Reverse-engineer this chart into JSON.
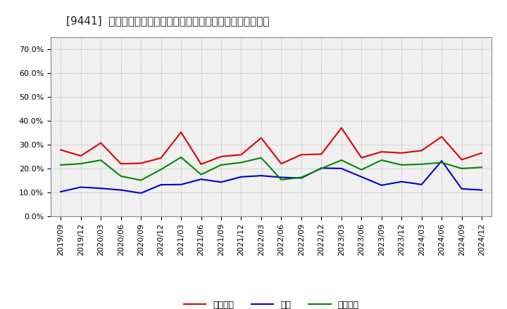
{
  "title": "[9441]  売上債権、在庫、買入債務の総資産に対する比率の推移",
  "x_labels": [
    "2019/09",
    "2019/12",
    "2020/03",
    "2020/06",
    "2020/09",
    "2020/12",
    "2021/03",
    "2021/06",
    "2021/09",
    "2021/12",
    "2022/03",
    "2022/06",
    "2022/09",
    "2022/12",
    "2023/03",
    "2023/06",
    "2023/09",
    "2023/12",
    "2024/03",
    "2024/06",
    "2024/09",
    "2024/12"
  ],
  "urikake": [
    0.278,
    0.253,
    0.307,
    0.22,
    0.222,
    0.244,
    0.352,
    0.218,
    0.25,
    0.258,
    0.328,
    0.22,
    0.258,
    0.26,
    0.37,
    0.245,
    0.27,
    0.265,
    0.275,
    0.333,
    0.237,
    0.265
  ],
  "zaiko": [
    0.103,
    0.122,
    0.117,
    0.11,
    0.097,
    0.132,
    0.133,
    0.155,
    0.143,
    0.165,
    0.17,
    0.163,
    0.16,
    0.202,
    0.2,
    0.165,
    0.13,
    0.145,
    0.133,
    0.232,
    0.115,
    0.11
  ],
  "kaiire": [
    0.215,
    0.22,
    0.235,
    0.168,
    0.151,
    0.196,
    0.247,
    0.175,
    0.215,
    0.225,
    0.245,
    0.153,
    0.163,
    0.2,
    0.235,
    0.195,
    0.235,
    0.215,
    0.218,
    0.225,
    0.2,
    0.205
  ],
  "urikake_color": "#dd0000",
  "zaiko_color": "#0000cc",
  "kaiire_color": "#008800",
  "ylim": [
    0.0,
    0.75
  ],
  "yticks": [
    0.0,
    0.1,
    0.2,
    0.3,
    0.4,
    0.5,
    0.6,
    0.7
  ],
  "legend_labels": [
    "売上債権",
    "在庫",
    "買入債務"
  ],
  "bg_color": "#ffffff",
  "plot_bg_color": "#f0f0f0",
  "grid_color": "#aaaaaa",
  "title_fontsize": 11,
  "tick_fontsize": 8,
  "legend_fontsize": 9
}
